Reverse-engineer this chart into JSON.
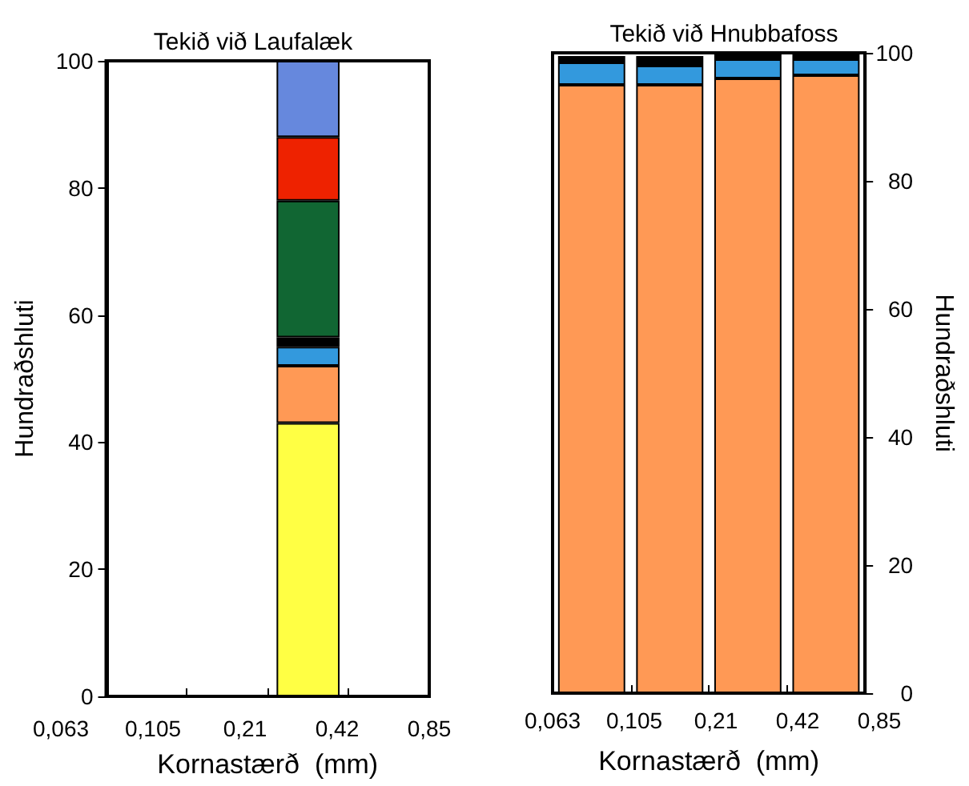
{
  "chart_data": [
    {
      "type": "bar",
      "title": "Tekið við Laufalæk",
      "xlabel": "Kornastærð  (mm)",
      "ylabel": "Hundraðshluti",
      "stacked": true,
      "categories": [
        null,
        null,
        null,
        null
      ],
      "annotations": [
        "0,063",
        "0,105",
        "0,21",
        "0,42",
        "0,85"
      ],
      "ylim": [
        0,
        100
      ],
      "yticks": [
        0,
        20,
        40,
        60,
        80,
        100
      ],
      "series": [
        {
          "color": "#ffff44",
          "values": [
            null,
            null,
            43,
            null
          ]
        },
        {
          "color": "#ff9955",
          "values": [
            null,
            null,
            9,
            null
          ]
        },
        {
          "color": "#3399dd",
          "values": [
            null,
            null,
            3,
            null
          ]
        },
        {
          "color": "#000000",
          "values": [
            null,
            null,
            1.5,
            null
          ]
        },
        {
          "color": "#116633",
          "values": [
            null,
            null,
            21.5,
            null
          ]
        },
        {
          "color": "#ee2200",
          "values": [
            null,
            null,
            10,
            null
          ]
        },
        {
          "color": "#6688dd",
          "values": [
            null,
            null,
            12,
            null
          ]
        }
      ]
    },
    {
      "type": "bar",
      "title": "Tekið við Hnubbafoss",
      "xlabel": "Kornastærð  (mm)",
      "ylabel": "Hundraðshluti",
      "stacked": true,
      "categories": [
        null,
        null,
        null,
        null
      ],
      "annotations": [
        "0,063",
        "0,105",
        "0,21",
        "0,42",
        "0,85"
      ],
      "ylim": [
        0,
        100
      ],
      "yticks": [
        0,
        20,
        40,
        60,
        80,
        100
      ],
      "series": [
        {
          "color": "#ff9955",
          "values": [
            95,
            95,
            96,
            96.5
          ]
        },
        {
          "color": "#3399dd",
          "values": [
            3.5,
            3,
            3,
            2.5
          ]
        },
        {
          "color": "#000000",
          "values": [
            1,
            1.5,
            1,
            1
          ]
        }
      ]
    }
  ]
}
